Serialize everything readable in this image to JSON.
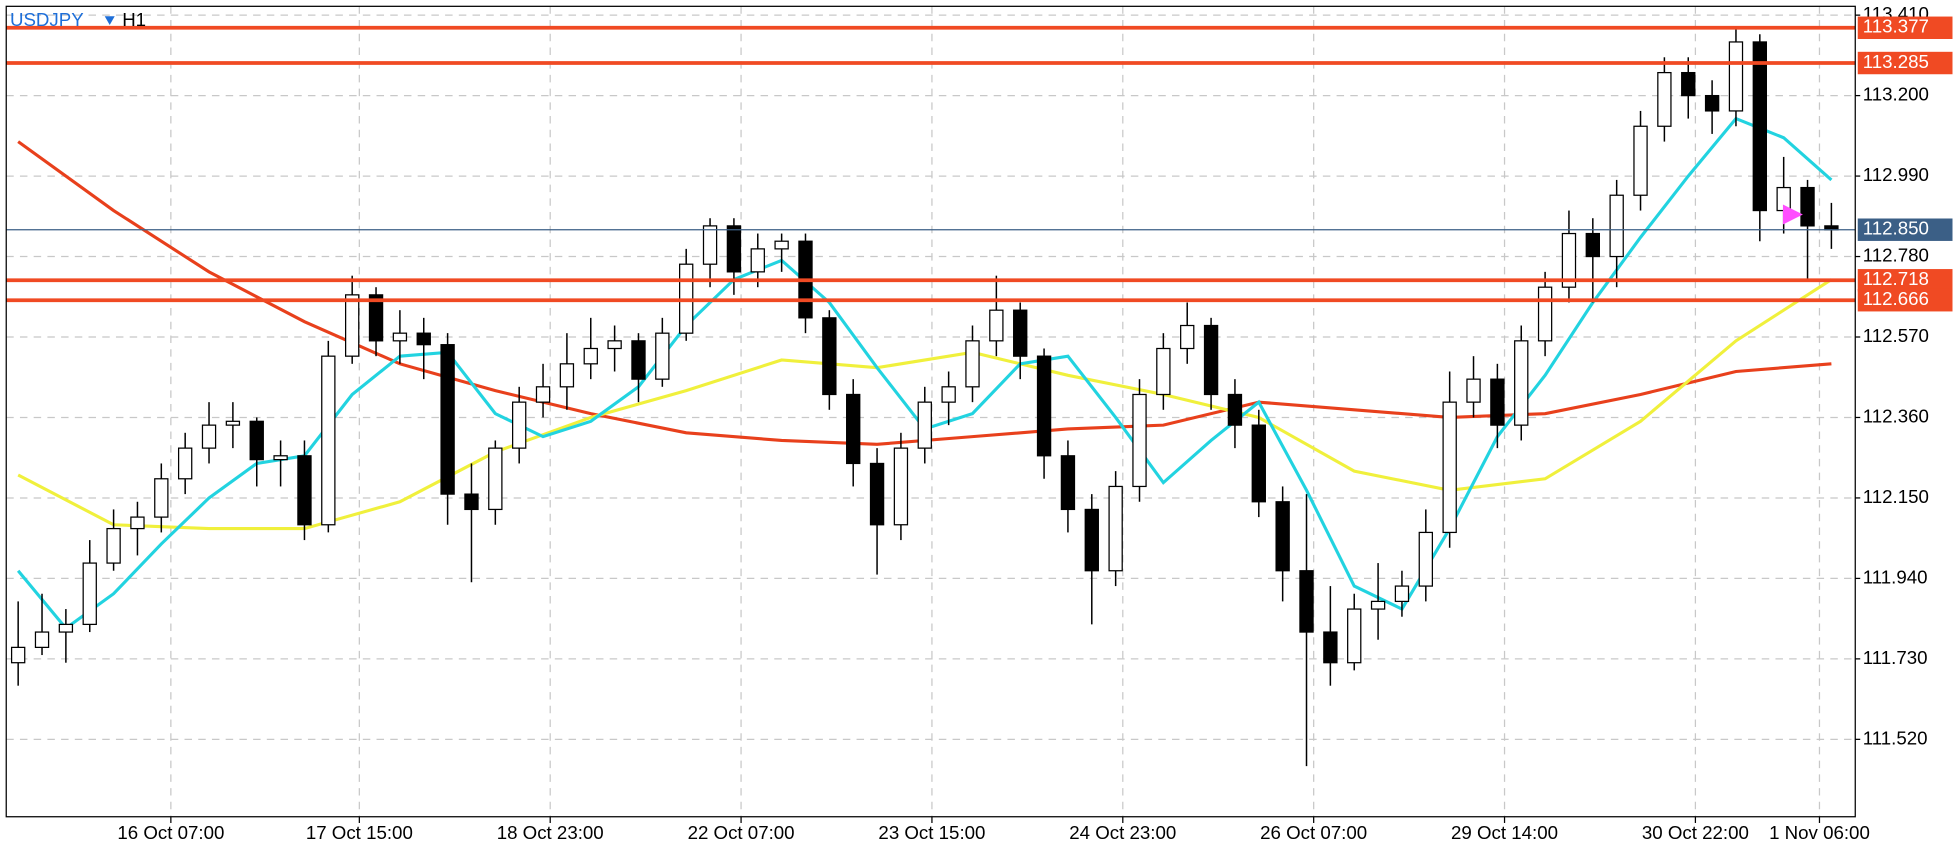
{
  "chart_data": {
    "type": "candlestick",
    "title": "USDJPY",
    "timeframe": "H1",
    "candles": [
      [
        111.72,
        111.88,
        111.66,
        111.76
      ],
      [
        111.76,
        111.9,
        111.74,
        111.8
      ],
      [
        111.8,
        111.86,
        111.72,
        111.82
      ],
      [
        111.82,
        112.04,
        111.8,
        111.98
      ],
      [
        111.98,
        112.12,
        111.96,
        112.07
      ],
      [
        112.07,
        112.14,
        112.0,
        112.1
      ],
      [
        112.1,
        112.24,
        112.06,
        112.2
      ],
      [
        112.2,
        112.32,
        112.16,
        112.28
      ],
      [
        112.28,
        112.4,
        112.24,
        112.34
      ],
      [
        112.34,
        112.4,
        112.28,
        112.35
      ],
      [
        112.35,
        112.36,
        112.18,
        112.25
      ],
      [
        112.25,
        112.3,
        112.18,
        112.26
      ],
      [
        112.26,
        112.3,
        112.04,
        112.08
      ],
      [
        112.08,
        112.56,
        112.06,
        112.52
      ],
      [
        112.52,
        112.73,
        112.5,
        112.68
      ],
      [
        112.68,
        112.7,
        112.52,
        112.56
      ],
      [
        112.56,
        112.64,
        112.5,
        112.58
      ],
      [
        112.58,
        112.62,
        112.46,
        112.55
      ],
      [
        112.55,
        112.58,
        112.08,
        112.16
      ],
      [
        112.16,
        112.24,
        111.93,
        112.12
      ],
      [
        112.12,
        112.3,
        112.08,
        112.28
      ],
      [
        112.28,
        112.44,
        112.24,
        112.4
      ],
      [
        112.4,
        112.5,
        112.36,
        112.44
      ],
      [
        112.44,
        112.58,
        112.38,
        112.5
      ],
      [
        112.5,
        112.62,
        112.46,
        112.54
      ],
      [
        112.54,
        112.6,
        112.48,
        112.56
      ],
      [
        112.56,
        112.58,
        112.4,
        112.46
      ],
      [
        112.46,
        112.62,
        112.44,
        112.58
      ],
      [
        112.58,
        112.8,
        112.56,
        112.76
      ],
      [
        112.76,
        112.88,
        112.7,
        112.86
      ],
      [
        112.86,
        112.88,
        112.68,
        112.74
      ],
      [
        112.74,
        112.84,
        112.7,
        112.8
      ],
      [
        112.8,
        112.84,
        112.74,
        112.82
      ],
      [
        112.82,
        112.84,
        112.58,
        112.62
      ],
      [
        112.62,
        112.64,
        112.38,
        112.42
      ],
      [
        112.42,
        112.46,
        112.18,
        112.24
      ],
      [
        112.24,
        112.28,
        111.95,
        112.08
      ],
      [
        112.08,
        112.32,
        112.04,
        112.28
      ],
      [
        112.28,
        112.44,
        112.24,
        112.4
      ],
      [
        112.4,
        112.48,
        112.34,
        112.44
      ],
      [
        112.44,
        112.6,
        112.4,
        112.56
      ],
      [
        112.56,
        112.73,
        112.52,
        112.64
      ],
      [
        112.64,
        112.66,
        112.46,
        112.52
      ],
      [
        112.52,
        112.54,
        112.2,
        112.26
      ],
      [
        112.26,
        112.3,
        112.06,
        112.12
      ],
      [
        112.12,
        112.16,
        111.82,
        111.96
      ],
      [
        111.96,
        112.22,
        111.92,
        112.18
      ],
      [
        112.18,
        112.46,
        112.14,
        112.42
      ],
      [
        112.42,
        112.58,
        112.38,
        112.54
      ],
      [
        112.54,
        112.66,
        112.5,
        112.6
      ],
      [
        112.6,
        112.62,
        112.38,
        112.42
      ],
      [
        112.42,
        112.46,
        112.28,
        112.34
      ],
      [
        112.34,
        112.38,
        112.1,
        112.14
      ],
      [
        112.14,
        112.18,
        111.88,
        111.96
      ],
      [
        111.96,
        112.16,
        111.45,
        111.8
      ],
      [
        111.8,
        111.92,
        111.66,
        111.72
      ],
      [
        111.72,
        111.9,
        111.7,
        111.86
      ],
      [
        111.86,
        111.98,
        111.78,
        111.88
      ],
      [
        111.88,
        111.96,
        111.84,
        111.92
      ],
      [
        111.92,
        112.12,
        111.88,
        112.06
      ],
      [
        112.06,
        112.48,
        112.02,
        112.4
      ],
      [
        112.4,
        112.52,
        112.36,
        112.46
      ],
      [
        112.46,
        112.5,
        112.28,
        112.34
      ],
      [
        112.34,
        112.6,
        112.3,
        112.56
      ],
      [
        112.56,
        112.74,
        112.52,
        112.7
      ],
      [
        112.7,
        112.9,
        112.66,
        112.84
      ],
      [
        112.84,
        112.88,
        112.66,
        112.78
      ],
      [
        112.78,
        112.98,
        112.7,
        112.94
      ],
      [
        112.94,
        113.16,
        112.9,
        113.12
      ],
      [
        113.12,
        113.3,
        113.08,
        113.26
      ],
      [
        113.26,
        113.3,
        113.14,
        113.2
      ],
      [
        113.2,
        113.24,
        113.1,
        113.16
      ],
      [
        113.16,
        113.38,
        113.12,
        113.34
      ],
      [
        113.34,
        113.36,
        112.82,
        112.9
      ],
      [
        112.9,
        113.04,
        112.84,
        112.96
      ],
      [
        112.96,
        112.98,
        112.72,
        112.86
      ],
      [
        112.86,
        112.92,
        112.8,
        112.85
      ]
    ],
    "up_color": "#ffffff",
    "down_color": "#000000",
    "series": [
      {
        "color": "#e8401c",
        "x": [
          0,
          4,
          8,
          12,
          16,
          20,
          24,
          28,
          32,
          36,
          40,
          44,
          48,
          52,
          56,
          60,
          64,
          68,
          72,
          76
        ],
        "values": [
          113.08,
          112.9,
          112.74,
          112.61,
          112.5,
          112.43,
          112.37,
          112.32,
          112.3,
          112.29,
          112.31,
          112.33,
          112.34,
          112.4,
          112.38,
          112.36,
          112.37,
          112.42,
          112.48,
          112.5
        ]
      },
      {
        "color": "#f0f03c",
        "x": [
          0,
          4,
          8,
          12,
          16,
          20,
          24,
          28,
          32,
          36,
          40,
          44,
          48,
          52,
          56,
          60,
          64,
          68,
          72,
          76
        ],
        "values": [
          112.21,
          112.08,
          112.07,
          112.07,
          112.14,
          112.27,
          112.36,
          112.43,
          112.51,
          112.49,
          112.53,
          112.47,
          112.42,
          112.36,
          112.22,
          112.17,
          112.2,
          112.35,
          112.56,
          112.72
        ]
      },
      {
        "color": "#22d3e0",
        "x": [
          0,
          2,
          4,
          6,
          8,
          10,
          12,
          14,
          16,
          18,
          20,
          22,
          24,
          26,
          28,
          30,
          32,
          34,
          36,
          38,
          40,
          42,
          44,
          46,
          48,
          50,
          52,
          54,
          56,
          58,
          60,
          62,
          64,
          66,
          68,
          70,
          72,
          74,
          76
        ],
        "values": [
          111.96,
          111.81,
          111.9,
          112.03,
          112.15,
          112.24,
          112.26,
          112.42,
          112.52,
          112.53,
          112.37,
          112.31,
          112.35,
          112.44,
          112.6,
          112.72,
          112.77,
          112.66,
          112.49,
          112.33,
          112.37,
          112.5,
          112.52,
          112.36,
          112.19,
          112.3,
          112.4,
          112.17,
          111.92,
          111.86,
          112.07,
          112.31,
          112.47,
          112.66,
          112.83,
          112.99,
          113.14,
          113.09,
          112.98
        ]
      }
    ],
    "levels": [
      113.377,
      113.285,
      112.718,
      112.666
    ],
    "level_color": "#f04a23",
    "current_price": {
      "value": 112.85,
      "label": "112.850"
    },
    "current_color": "#3b5f86",
    "xlim": [
      -0.5,
      77
    ],
    "xticks": [
      {
        "value": 6.4,
        "label": "16 Oct 07:00"
      },
      {
        "value": 14.3,
        "label": "17 Oct 15:00"
      },
      {
        "value": 22.3,
        "label": "18 Oct 23:00"
      },
      {
        "value": 30.3,
        "label": "22 Oct 07:00"
      },
      {
        "value": 38.3,
        "label": "23 Oct 15:00"
      },
      {
        "value": 46.3,
        "label": "24 Oct 23:00"
      },
      {
        "value": 54.3,
        "label": "26 Oct 07:00"
      },
      {
        "value": 62.3,
        "label": "29 Oct 14:00"
      },
      {
        "value": 70.3,
        "label": "30 Oct 22:00"
      },
      {
        "value": 75.5,
        "label": "1 Nov 06:00"
      }
    ],
    "ylim": [
      111.318,
      113.433
    ],
    "yticks": [
      {
        "value": 113.41,
        "label": "113.410"
      },
      {
        "value": 113.2,
        "label": "113.200"
      },
      {
        "value": 112.99,
        "label": "112.990"
      },
      {
        "value": 112.78,
        "label": "112.780"
      },
      {
        "value": 112.57,
        "label": "112.570"
      },
      {
        "value": 112.36,
        "label": "112.360"
      },
      {
        "value": 112.15,
        "label": "112.150"
      },
      {
        "value": 111.94,
        "label": "111.940"
      },
      {
        "value": 111.73,
        "label": "111.730"
      },
      {
        "value": 111.52,
        "label": "111.520"
      }
    ],
    "grid": true
  }
}
